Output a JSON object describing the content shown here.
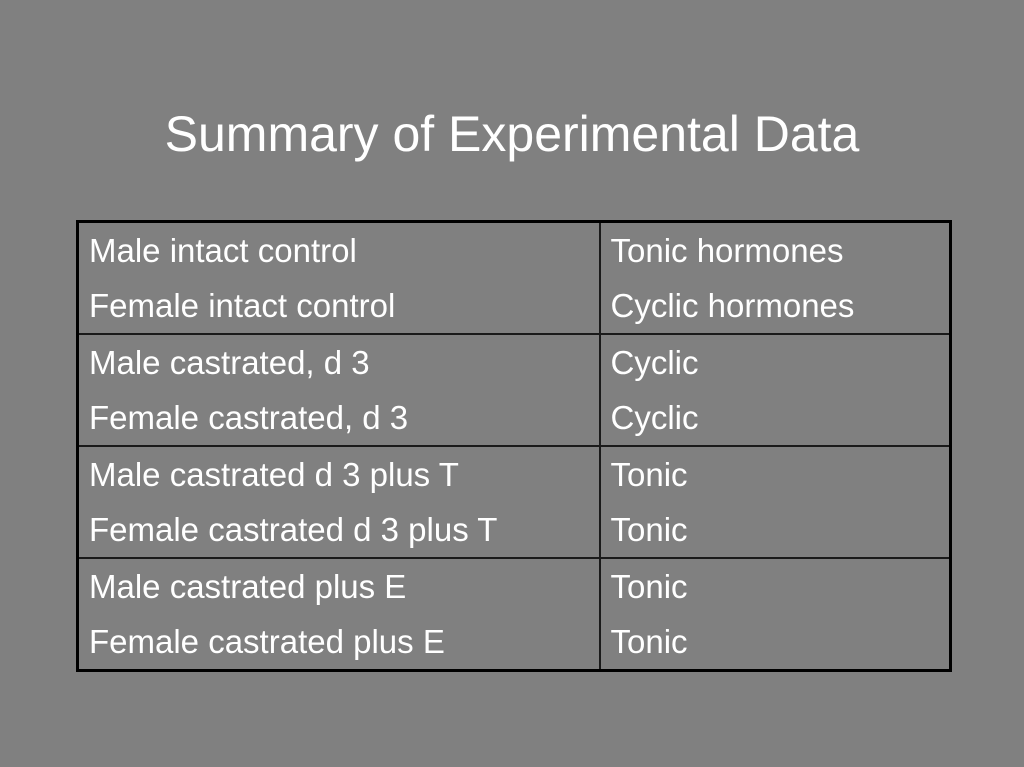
{
  "slide": {
    "title": "Summary of Experimental Data"
  },
  "table": {
    "rows": [
      {
        "condition": [
          "Male intact control",
          "Female intact control"
        ],
        "result": [
          "Tonic hormones",
          "Cyclic hormones"
        ]
      },
      {
        "condition": [
          "Male castrated, d 3",
          "Female castrated, d 3"
        ],
        "result": [
          "Cyclic",
          "Cyclic"
        ]
      },
      {
        "condition": [
          "Male castrated d 3 plus T",
          "Female castrated d 3 plus T"
        ],
        "result": [
          "Tonic",
          "Tonic"
        ]
      },
      {
        "condition": [
          "Male castrated plus E",
          "Female castrated plus E"
        ],
        "result": [
          "Tonic",
          "Tonic"
        ]
      }
    ]
  },
  "colors": {
    "background": "#808080",
    "text": "#ffffff",
    "border": "#000000"
  }
}
